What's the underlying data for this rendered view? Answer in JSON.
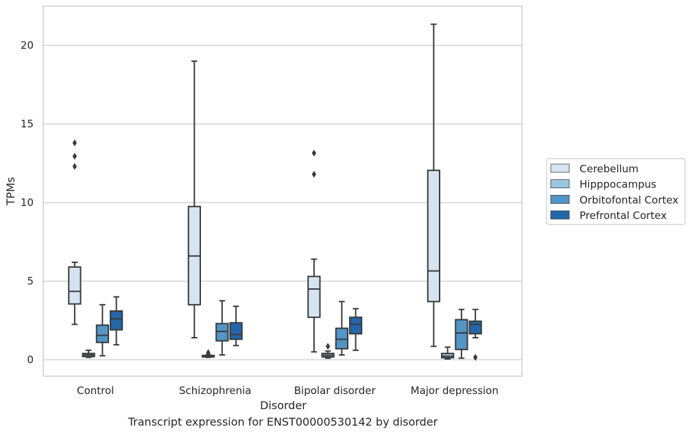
{
  "chart_data": {
    "type": "boxplot",
    "caption": "Transcript expression for ENST00000530142 by disorder",
    "xlabel": "Disorder",
    "ylabel": "TPMs",
    "ylim": [
      -1.05,
      22.5
    ],
    "yticks": [
      0,
      5,
      10,
      15,
      20
    ],
    "grid": "horizontal",
    "legend_position": "right",
    "categories": [
      "Control",
      "Schizophrenia",
      "Bipolar disorder",
      "Major depression"
    ],
    "series": [
      {
        "name": "Cerebellum",
        "color": "#d6e4f1",
        "boxes": [
          {
            "whisker_low": 2.25,
            "q1": 3.55,
            "median": 4.35,
            "q3": 5.9,
            "whisker_high": 6.2,
            "outliers": [
              12.3,
              12.95,
              13.8
            ]
          },
          {
            "whisker_low": 1.4,
            "q1": 3.5,
            "median": 6.6,
            "q3": 9.75,
            "whisker_high": 19.0,
            "outliers": []
          },
          {
            "whisker_low": 0.5,
            "q1": 2.7,
            "median": 4.5,
            "q3": 5.3,
            "whisker_high": 6.4,
            "outliers": [
              11.8,
              13.15
            ]
          },
          {
            "whisker_low": 0.85,
            "q1": 3.7,
            "median": 5.65,
            "q3": 12.05,
            "whisker_high": 21.35,
            "outliers": []
          }
        ]
      },
      {
        "name": "Hipppocampus",
        "color": "#9ac6e0",
        "boxes": [
          {
            "whisker_low": 0.15,
            "q1": 0.2,
            "median": 0.3,
            "q3": 0.4,
            "whisker_high": 0.6,
            "outliers": []
          },
          {
            "whisker_low": 0.15,
            "q1": 0.18,
            "median": 0.22,
            "q3": 0.27,
            "whisker_high": 0.3,
            "outliers": [
              0.35,
              0.45
            ]
          },
          {
            "whisker_low": 0.1,
            "q1": 0.18,
            "median": 0.28,
            "q3": 0.4,
            "whisker_high": 0.55,
            "outliers": [
              0.85
            ]
          },
          {
            "whisker_low": 0.05,
            "q1": 0.12,
            "median": 0.22,
            "q3": 0.4,
            "whisker_high": 0.8,
            "outliers": []
          }
        ]
      },
      {
        "name": "Orbitofontal Cortex",
        "color": "#5295c7",
        "boxes": [
          {
            "whisker_low": 0.25,
            "q1": 1.1,
            "median": 1.55,
            "q3": 2.2,
            "whisker_high": 3.5,
            "outliers": []
          },
          {
            "whisker_low": 0.3,
            "q1": 1.2,
            "median": 1.8,
            "q3": 2.3,
            "whisker_high": 3.75,
            "outliers": []
          },
          {
            "whisker_low": 0.3,
            "q1": 0.7,
            "median": 1.3,
            "q3": 2.0,
            "whisker_high": 3.7,
            "outliers": []
          },
          {
            "whisker_low": 0.1,
            "q1": 0.65,
            "median": 1.7,
            "q3": 2.55,
            "whisker_high": 3.2,
            "outliers": []
          }
        ]
      },
      {
        "name": "Prefrontal Cortex",
        "color": "#2466aa",
        "boxes": [
          {
            "whisker_low": 0.95,
            "q1": 1.9,
            "median": 2.6,
            "q3": 3.1,
            "whisker_high": 4.0,
            "outliers": []
          },
          {
            "whisker_low": 0.9,
            "q1": 1.3,
            "median": 1.6,
            "q3": 2.35,
            "whisker_high": 3.4,
            "outliers": []
          },
          {
            "whisker_low": 0.6,
            "q1": 1.65,
            "median": 2.25,
            "q3": 2.7,
            "whisker_high": 3.25,
            "outliers": []
          },
          {
            "whisker_low": 1.4,
            "q1": 1.65,
            "median": 2.25,
            "q3": 2.45,
            "whisker_high": 3.2,
            "outliers": [
              0.15
            ]
          }
        ]
      }
    ]
  }
}
